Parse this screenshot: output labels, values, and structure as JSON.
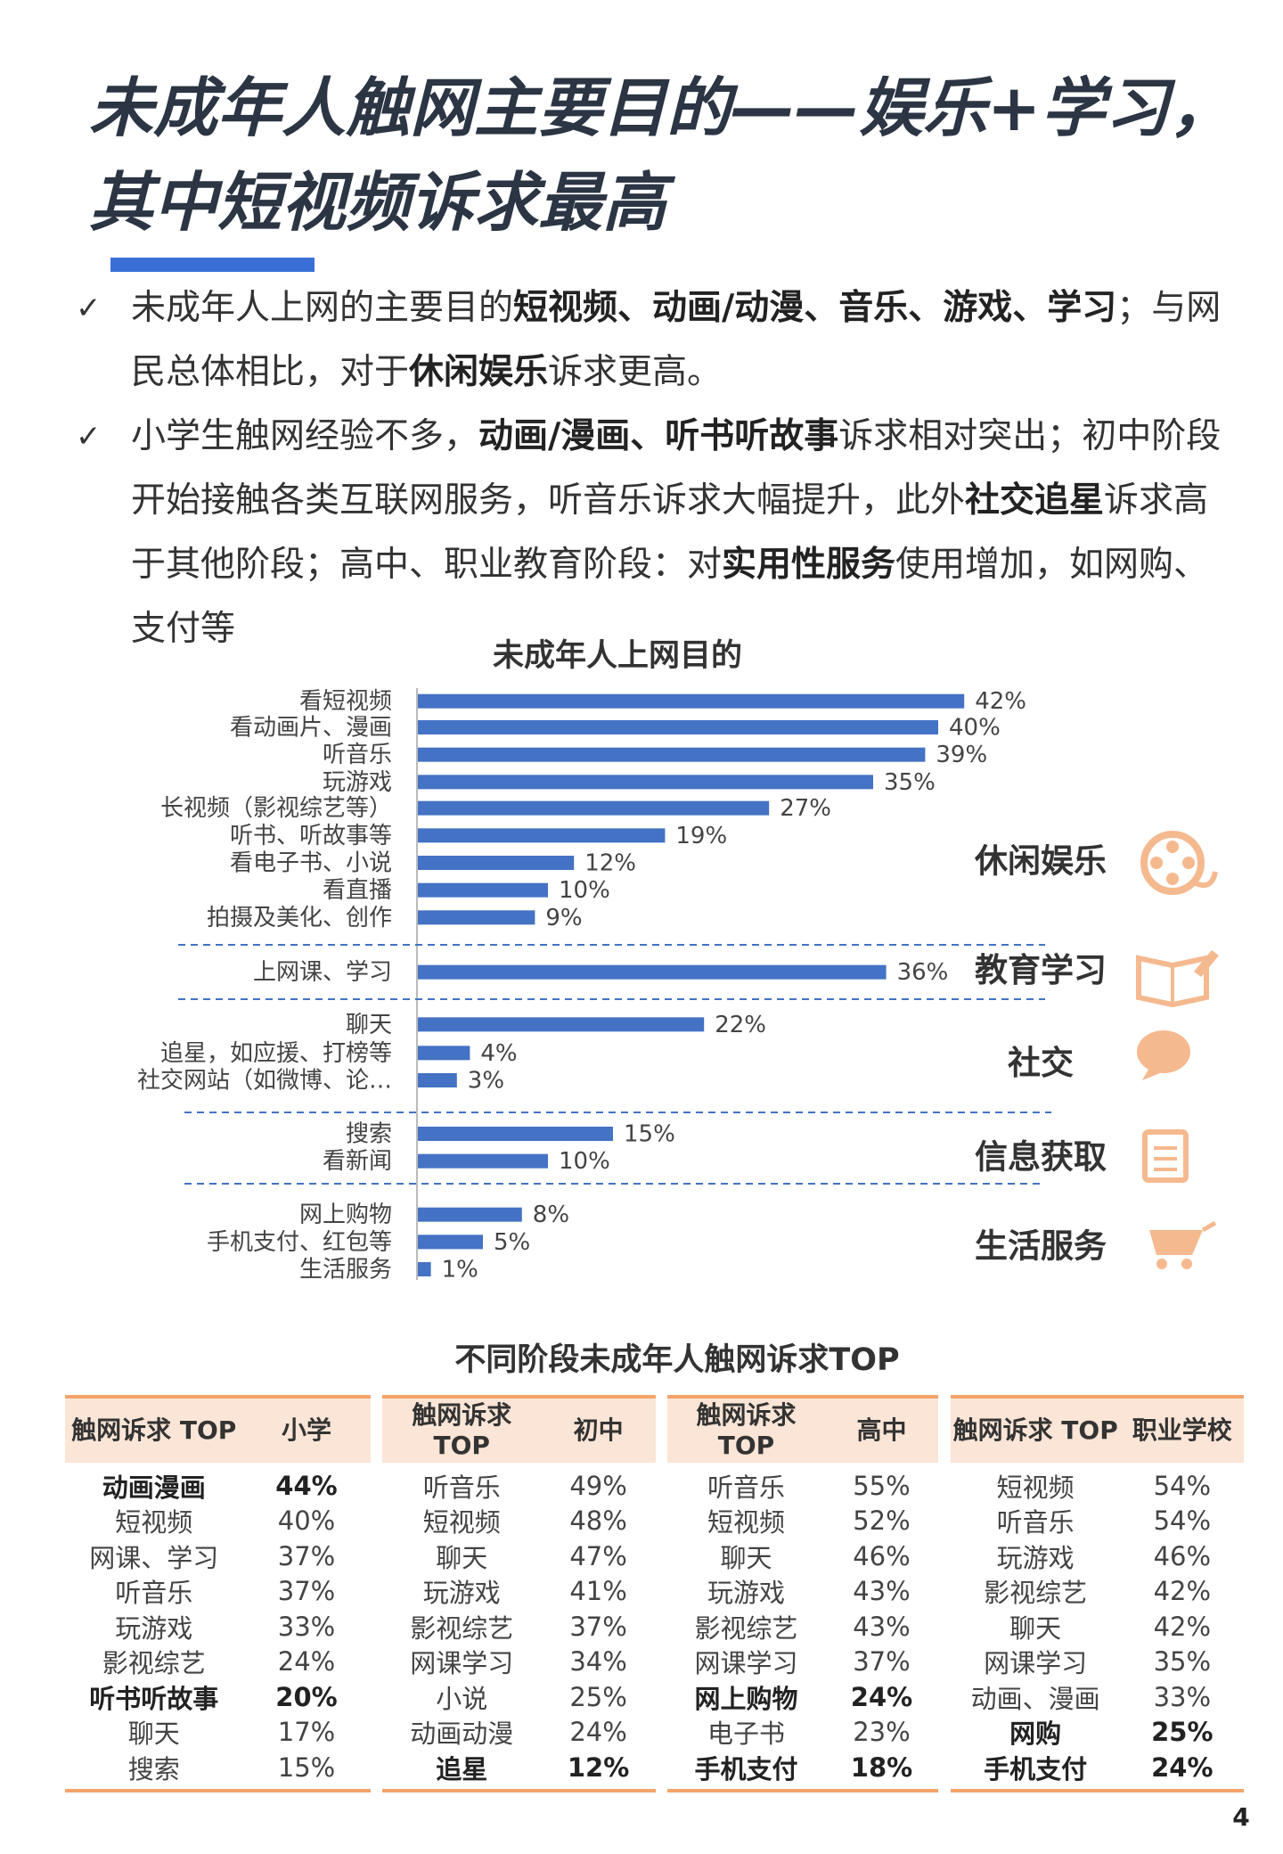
{
  "header": {
    "title_lines": [
      "未成年人触网主要目的——娱乐+学习，",
      "其中短视频诉求最高"
    ]
  },
  "bullets": [
    {
      "segments": [
        {
          "text": "未成年人上网的主要目的",
          "bold": false
        },
        {
          "text": "短视频、动画/动漫、音乐、游戏、学习",
          "bold": true
        },
        {
          "text": "；与网民总体相比，对于",
          "bold": false
        },
        {
          "text": "休闲娱乐",
          "bold": true
        },
        {
          "text": "诉求更高。",
          "bold": false
        }
      ]
    },
    {
      "segments": [
        {
          "text": "小学生触网经验不多，",
          "bold": false
        },
        {
          "text": "动画/漫画、听书听故事",
          "bold": true
        },
        {
          "text": "诉求相对突出；初中阶段开始接触各类互联网服务，听音乐诉求大幅提升，此外",
          "bold": false
        },
        {
          "text": "社交追星",
          "bold": true
        },
        {
          "text": "诉求高于其他阶段；高中、职业教育阶段：对",
          "bold": false
        },
        {
          "text": "实用性服务",
          "bold": true
        },
        {
          "text": "使用增加，如网购、支付等",
          "bold": false
        }
      ]
    }
  ],
  "chart_data": {
    "type": "bar",
    "orientation": "horizontal",
    "title": "未成年人上网目的",
    "color": "#4472c4",
    "groups": [
      {
        "label": "休闲娱乐",
        "categories": [
          "看短视频",
          "看动画片、漫画",
          "听音乐",
          "玩游戏",
          "长视频（影视综艺等）",
          "听书、听故事等",
          "看电子书、小说",
          "看直播",
          "拍摄及美化、创作"
        ],
        "values": [
          42,
          40,
          39,
          35,
          27,
          19,
          12,
          10,
          9
        ],
        "value_labels": [
          "42%",
          "40%",
          "39%",
          "35%",
          "27%",
          "19%",
          "12%",
          "10%",
          "9%"
        ]
      },
      {
        "label": "教育学习",
        "categories": [
          "上网课、学习"
        ],
        "values": [
          36
        ],
        "value_labels": [
          "36%"
        ]
      },
      {
        "label": "社交",
        "categories": [
          "聊天",
          "追星，如应援、打榜等",
          "社交网站（如微博、论…"
        ],
        "values": [
          22,
          4,
          3
        ],
        "value_labels": [
          "22%",
          "4%",
          "3%"
        ]
      },
      {
        "label": "信息获取",
        "categories": [
          "搜索",
          "看新闻"
        ],
        "values": [
          15,
          10
        ],
        "value_labels": [
          "15%",
          "10%"
        ]
      },
      {
        "label": "生活服务",
        "categories": [
          "网上购物",
          "手机支付、红包等",
          "生活服务"
        ],
        "values": [
          8,
          5,
          1
        ],
        "value_labels": [
          "8%",
          "5%",
          "1%"
        ]
      }
    ]
  },
  "tables_title": "不同阶段未成年人触网诉求TOP",
  "tables": [
    {
      "header": [
        "触网诉求 TOP",
        "小学"
      ],
      "rows": [
        {
          "cells": [
            "动画漫画",
            "44%"
          ],
          "bold": true
        },
        {
          "cells": [
            "短视频",
            "40%"
          ],
          "bold": false
        },
        {
          "cells": [
            "网课、学习",
            "37%"
          ],
          "bold": false
        },
        {
          "cells": [
            "听音乐",
            "37%"
          ],
          "bold": false
        },
        {
          "cells": [
            "玩游戏",
            "33%"
          ],
          "bold": false
        },
        {
          "cells": [
            "影视综艺",
            "24%"
          ],
          "bold": false
        },
        {
          "cells": [
            "听书听故事",
            "20%"
          ],
          "bold": true
        },
        {
          "cells": [
            "聊天",
            "17%"
          ],
          "bold": false
        },
        {
          "cells": [
            "搜索",
            "15%"
          ],
          "bold": false
        }
      ]
    },
    {
      "header": [
        "触网诉求 TOP",
        "初中"
      ],
      "rows": [
        {
          "cells": [
            "听音乐",
            "49%"
          ],
          "bold": false
        },
        {
          "cells": [
            "短视频",
            "48%"
          ],
          "bold": false
        },
        {
          "cells": [
            "聊天",
            "47%"
          ],
          "bold": false
        },
        {
          "cells": [
            "玩游戏",
            "41%"
          ],
          "bold": false
        },
        {
          "cells": [
            "影视综艺",
            "37%"
          ],
          "bold": false
        },
        {
          "cells": [
            "网课学习",
            "34%"
          ],
          "bold": false
        },
        {
          "cells": [
            "小说",
            "25%"
          ],
          "bold": false
        },
        {
          "cells": [
            "动画动漫",
            "24%"
          ],
          "bold": false
        },
        {
          "cells": [
            "追星",
            "12%"
          ],
          "bold": true
        }
      ]
    },
    {
      "header": [
        "触网诉求 TOP",
        "高中"
      ],
      "rows": [
        {
          "cells": [
            "听音乐",
            "55%"
          ],
          "bold": false
        },
        {
          "cells": [
            "短视频",
            "52%"
          ],
          "bold": false
        },
        {
          "cells": [
            "聊天",
            "46%"
          ],
          "bold": false
        },
        {
          "cells": [
            "玩游戏",
            "43%"
          ],
          "bold": false
        },
        {
          "cells": [
            "影视综艺",
            "43%"
          ],
          "bold": false
        },
        {
          "cells": [
            "网课学习",
            "37%"
          ],
          "bold": false
        },
        {
          "cells": [
            "网上购物",
            "24%"
          ],
          "bold": true
        },
        {
          "cells": [
            "电子书",
            "23%"
          ],
          "bold": false
        },
        {
          "cells": [
            "手机支付",
            "18%"
          ],
          "bold": true
        }
      ]
    },
    {
      "header": [
        "触网诉求 TOP",
        "职业学校"
      ],
      "rows": [
        {
          "cells": [
            "短视频",
            "54%"
          ],
          "bold": false
        },
        {
          "cells": [
            "听音乐",
            "54%"
          ],
          "bold": false
        },
        {
          "cells": [
            "玩游戏",
            "46%"
          ],
          "bold": false
        },
        {
          "cells": [
            "影视综艺",
            "42%"
          ],
          "bold": false
        },
        {
          "cells": [
            "聊天",
            "42%"
          ],
          "bold": false
        },
        {
          "cells": [
            "网课学习",
            "35%"
          ],
          "bold": false
        },
        {
          "cells": [
            "动画、漫画",
            "33%"
          ],
          "bold": false
        },
        {
          "cells": [
            "网购",
            "25%"
          ],
          "bold": true
        },
        {
          "cells": [
            "手机支付",
            "24%"
          ],
          "bold": true
        }
      ]
    }
  ],
  "page_number": "4"
}
